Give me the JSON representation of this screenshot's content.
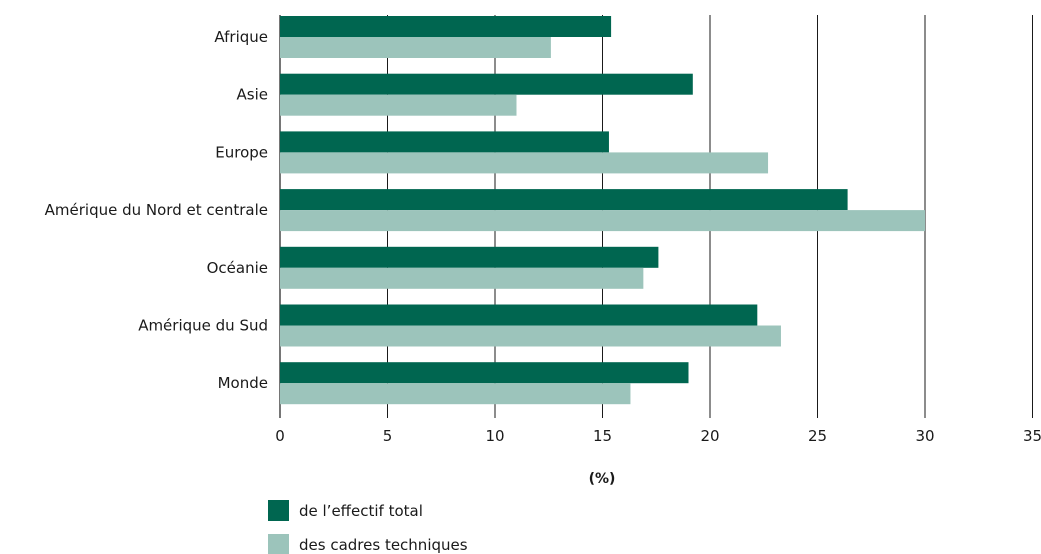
{
  "chart_data": {
    "type": "bar",
    "orientation": "horizontal",
    "categories": [
      "Afrique",
      "Asie",
      "Europe",
      "Amérique du Nord et centrale",
      "Océanie",
      "Amérique du Sud",
      "Monde"
    ],
    "series": [
      {
        "name": "de l’effectif total",
        "color": "#006650",
        "values": [
          15.4,
          19.2,
          15.3,
          26.4,
          17.6,
          22.2,
          19.0
        ]
      },
      {
        "name": "des cadres techniques",
        "color": "#9cc4bb",
        "values": [
          12.6,
          11.0,
          22.7,
          30.0,
          16.9,
          23.3,
          16.3
        ]
      }
    ],
    "xlabel": "(%)",
    "ylabel": "",
    "xlim": [
      0,
      35
    ],
    "x_ticks": [
      "0",
      "5",
      "10",
      "15",
      "20",
      "25",
      "30",
      "35"
    ],
    "grid": "vertical",
    "legend_position": "bottom-left"
  }
}
